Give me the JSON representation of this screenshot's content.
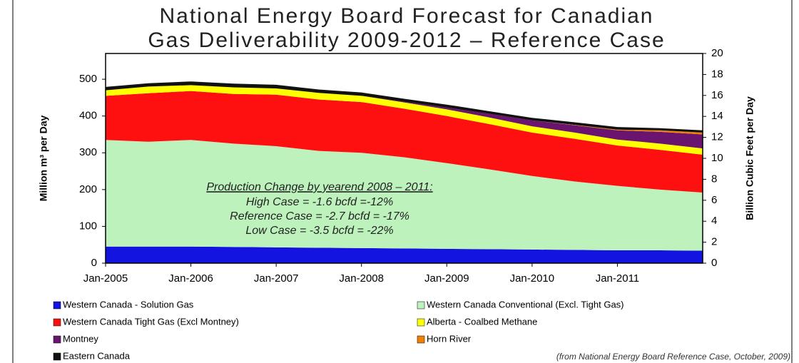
{
  "chart_data": {
    "type": "stacked_area",
    "title": [
      "National Energy Board Forecast for Canadian",
      "Gas Deliverability 2009-2012 – Reference Case"
    ],
    "ylabel": "Million m³ per Day",
    "y2label": "Billion Cubic Feet per Day",
    "annotations": [
      "Production Change by yearend 2008 – 2011:",
      "High Case = -1.6 bcfd =-12%",
      "Reference Case = -2.7 bcfd = -17%",
      "Low Case = -3.5 bcfd = -22%"
    ],
    "source": "(from National Energy Board Reference Case, October, 2009)",
    "x": [
      2005,
      2005.5,
      2006,
      2006.5,
      2007,
      2007.5,
      2008,
      2008.5,
      2009,
      2009.5,
      2010,
      2010.5,
      2011,
      2011.5,
      2012
    ],
    "xlim": [
      2005,
      2012
    ],
    "xticks": [
      {
        "value": 2005,
        "label": "Jan-2005"
      },
      {
        "value": 2006,
        "label": "Jan-2006"
      },
      {
        "value": 2007,
        "label": "Jan-2007"
      },
      {
        "value": 2008,
        "label": "Jan-2008"
      },
      {
        "value": 2009,
        "label": "Jan-2009"
      },
      {
        "value": 2010,
        "label": "Jan-2010"
      },
      {
        "value": 2011,
        "label": "Jan-2011"
      }
    ],
    "ylim": [
      0,
      570
    ],
    "yticks": [
      0,
      100,
      200,
      300,
      400,
      500
    ],
    "y2lim": [
      0,
      20
    ],
    "y2ticks": [
      0,
      2,
      4,
      6,
      8,
      10,
      12,
      14,
      16,
      18,
      20
    ],
    "series": [
      {
        "name": "Western Canada - Solution Gas",
        "color": "#1414e0",
        "values": [
          45,
          45,
          45,
          44,
          43,
          42,
          41,
          40,
          39,
          38,
          37,
          36,
          35,
          35,
          34
        ]
      },
      {
        "name": "Western Canada Conventional (Excl. Tight Gas)",
        "color": "#bdf2bd",
        "values": [
          290,
          285,
          290,
          281,
          275,
          263,
          259,
          248,
          233,
          217,
          200,
          186,
          175,
          165,
          158
        ]
      },
      {
        "name": "Western Canada Tight Gas (Excl Montney)",
        "color": "#ff1010",
        "values": [
          120,
          132,
          133,
          135,
          140,
          140,
          138,
          132,
          128,
          123,
          118,
          116,
          110,
          108,
          103
        ]
      },
      {
        "name": "Alberta - Coalbed Methane",
        "color": "#ffff00",
        "values": [
          15,
          18,
          16,
          18,
          17,
          18,
          17,
          17,
          18,
          18,
          17,
          17,
          16,
          17,
          17
        ]
      },
      {
        "name": "Montney",
        "color": "#6a1470",
        "values": [
          0,
          0,
          0,
          0,
          0,
          0,
          0,
          2,
          5,
          10,
          16,
          20,
          25,
          32,
          38
        ]
      },
      {
        "name": "Horn River",
        "color": "#f08000",
        "values": [
          0,
          0,
          0,
          0,
          0,
          0,
          0,
          0,
          0,
          0,
          0,
          1,
          2,
          4,
          5
        ]
      },
      {
        "name": "Eastern Canada",
        "color": "#111111",
        "values": [
          9,
          9,
          10,
          10,
          10,
          9,
          9,
          8,
          8,
          7,
          7,
          7,
          7,
          6,
          6
        ]
      }
    ]
  }
}
